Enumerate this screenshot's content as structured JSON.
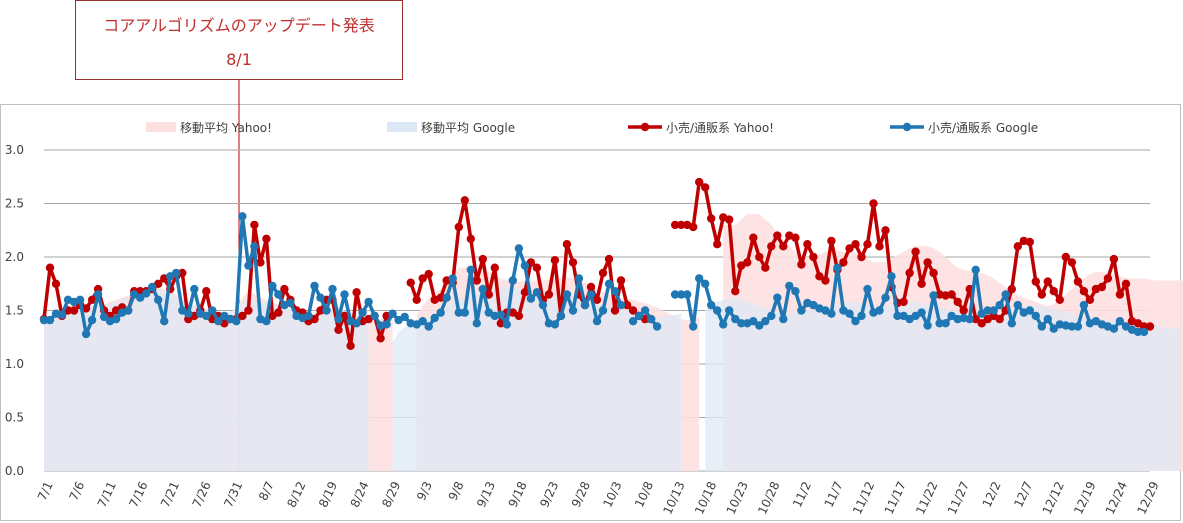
{
  "annotation": {
    "title": "コアアルゴリズムのアップデート発表",
    "date": "8/1"
  },
  "colors": {
    "yahoo_line": "#c00000",
    "google_line": "#1f77b4",
    "yahoo_area": "#fde0e0",
    "google_area": "#dde8f6",
    "overlap_area": "#e4dde8",
    "grid": "#a6a6a6",
    "annotation": "#c0302f"
  },
  "chart_data": {
    "type": "line",
    "ylim": [
      0,
      3.0
    ],
    "y_ticks": [
      "0.0",
      "0.5",
      "1.0",
      "1.5",
      "2.0",
      "2.5",
      "3.0"
    ],
    "x_tick_labels": [
      "7/1",
      "7/6",
      "7/11",
      "7/16",
      "7/21",
      "7/26",
      "7/31",
      "8/7",
      "8/12",
      "8/19",
      "8/24",
      "8/29",
      "9/3",
      "9/8",
      "9/13",
      "9/18",
      "9/23",
      "9/28",
      "10/3",
      "10/8",
      "10/13",
      "10/18",
      "10/23",
      "10/28",
      "11/2",
      "11/7",
      "11/12",
      "11/17",
      "11/22",
      "11/27",
      "12/2",
      "12/7",
      "12/12",
      "12/19",
      "12/24",
      "12/29"
    ],
    "legend_position": "top",
    "grid": true,
    "series": [
      {
        "name": "移動平均 Yahoo!",
        "kind": "area",
        "values": [
          1.41,
          1.45,
          1.5,
          1.53,
          1.55,
          1.55,
          1.55,
          1.55,
          1.55,
          1.55,
          1.56,
          1.58,
          1.6,
          1.62,
          1.64,
          1.66,
          1.69,
          1.7,
          1.71,
          1.72,
          1.7,
          1.68,
          1.65,
          1.61,
          1.57,
          1.55,
          1.52,
          1.5,
          1.48,
          1.47,
          1.46,
          1.46,
          1.52,
          1.62,
          1.68,
          1.65,
          1.62,
          1.6,
          1.58,
          1.55,
          1.52,
          1.5,
          1.47,
          1.46,
          1.45,
          1.45,
          1.48,
          1.52,
          1.53,
          1.52,
          1.5,
          1.48,
          1.46,
          1.42,
          1.4,
          1.4,
          1.42,
          1.44,
          1.44,
          null,
          null,
          null,
          1.46,
          1.54,
          1.62,
          1.66,
          1.7,
          1.77,
          1.84,
          1.9,
          1.9,
          1.91,
          1.9,
          1.88,
          1.86,
          1.84,
          1.8,
          1.78,
          1.77,
          1.77,
          1.78,
          1.78,
          1.78,
          1.78,
          1.79,
          1.8,
          1.8,
          1.81,
          1.8,
          1.78,
          1.76,
          1.73,
          1.7,
          1.67,
          1.65,
          1.63,
          1.62,
          1.61,
          1.6,
          1.58,
          1.57,
          1.55,
          1.53,
          1.5,
          1.47,
          1.44,
          1.42,
          1.41,
          1.42,
          1.44,
          null,
          null,
          null,
          2.3,
          2.3,
          2.3,
          2.35,
          2.4,
          2.4,
          2.4,
          2.35,
          2.3,
          2.22,
          2.15,
          2.1,
          2.05,
          2.02,
          2.0,
          2.0,
          2.02,
          2.05,
          2.06,
          2.06,
          2.05,
          2.05,
          2.04,
          2.02,
          1.98,
          1.95,
          1.95,
          1.96,
          1.98,
          2.02,
          2.05,
          2.08,
          2.1,
          2.1,
          2.1,
          2.08,
          2.05,
          2.0,
          1.95,
          1.9,
          1.88,
          1.87,
          1.86,
          1.85,
          1.83,
          1.8,
          1.76,
          1.72,
          1.68,
          1.64,
          1.62,
          1.6,
          1.58,
          1.56,
          1.54,
          1.56,
          1.6,
          1.65,
          1.7,
          1.75,
          1.8,
          1.84,
          1.86,
          1.86,
          1.85,
          1.84,
          1.82,
          1.8,
          1.8,
          1.8,
          1.8,
          1.79,
          1.78,
          1.78,
          1.78,
          1.78,
          1.78,
          1.78,
          1.78,
          1.78
        ]
      },
      {
        "name": "移動平均 Google",
        "kind": "area",
        "values": [
          1.41,
          1.43,
          1.46,
          1.5,
          1.52,
          1.53,
          1.54,
          1.55,
          1.55,
          1.55,
          1.55,
          1.56,
          1.58,
          1.6,
          1.62,
          1.64,
          1.67,
          1.69,
          1.7,
          1.7,
          1.68,
          1.66,
          1.63,
          1.6,
          1.57,
          1.55,
          1.53,
          1.52,
          1.5,
          1.49,
          1.48,
          1.49,
          1.52,
          1.58,
          1.62,
          1.6,
          1.58,
          1.57,
          1.56,
          1.55,
          1.53,
          1.51,
          1.5,
          1.48,
          1.47,
          1.47,
          1.49,
          1.52,
          1.52,
          1.51,
          1.5,
          1.48,
          1.46,
          1.44,
          1.43,
          null,
          null,
          null,
          1.2,
          1.3,
          1.34,
          1.38,
          1.4,
          1.42,
          1.44,
          1.46,
          1.5,
          1.55,
          1.6,
          1.62,
          1.62,
          1.63,
          1.64,
          1.65,
          1.67,
          1.7,
          1.72,
          1.72,
          1.71,
          1.7,
          1.69,
          1.66,
          1.63,
          1.62,
          1.62,
          1.62,
          1.63,
          1.64,
          1.63,
          1.62,
          1.6,
          1.58,
          1.56,
          1.55,
          1.54,
          1.53,
          1.52,
          1.5,
          1.48,
          1.46,
          1.44,
          1.43,
          1.43,
          1.44,
          1.45,
          1.46,
          1.47,
          null,
          null,
          null,
          1.5,
          1.55,
          1.58,
          1.6,
          1.62,
          1.62,
          1.6,
          1.58,
          1.56,
          1.54,
          1.52,
          1.5,
          1.48,
          1.47,
          1.47,
          1.48,
          1.49,
          1.5,
          1.51,
          1.52,
          1.53,
          1.54,
          1.56,
          1.58,
          1.58,
          1.57,
          1.56,
          1.55,
          1.54,
          1.54,
          1.54,
          1.55,
          1.56,
          1.57,
          1.58,
          1.58,
          1.57,
          1.56,
          1.55,
          1.53,
          1.52,
          1.5,
          1.49,
          1.48,
          1.47,
          1.46,
          1.45,
          1.45,
          1.46,
          1.47,
          1.48,
          1.5,
          1.52,
          1.54,
          1.55,
          1.55,
          1.54,
          1.53,
          1.52,
          1.5,
          1.48,
          1.47,
          1.46,
          1.45,
          1.44,
          1.43,
          1.42,
          1.41,
          1.4,
          1.4,
          1.4,
          1.39,
          1.38,
          1.38,
          1.37,
          1.36,
          1.35,
          1.34,
          1.33,
          1.33
        ]
      },
      {
        "name": "小売/通販系 Yahoo!",
        "kind": "line",
        "values": [
          1.42,
          1.9,
          1.75,
          1.45,
          1.5,
          1.5,
          1.55,
          1.52,
          1.6,
          1.7,
          1.5,
          1.45,
          1.5,
          1.53,
          1.5,
          1.68,
          1.68,
          1.68,
          1.7,
          1.75,
          1.8,
          1.7,
          1.82,
          1.85,
          1.42,
          1.45,
          1.5,
          1.68,
          1.42,
          1.45,
          1.38,
          1.42,
          1.42,
          1.45,
          1.5,
          2.3,
          1.95,
          2.17,
          1.45,
          1.48,
          1.7,
          1.6,
          1.5,
          1.48,
          1.4,
          1.42,
          1.5,
          1.6,
          1.6,
          1.32,
          1.45,
          1.17,
          1.67,
          1.4,
          1.42,
          1.45,
          1.24,
          1.45,
          null,
          null,
          null,
          1.76,
          1.6,
          1.8,
          1.84,
          1.6,
          1.62,
          1.78,
          1.76,
          2.28,
          2.53,
          2.17,
          1.78,
          1.98,
          1.65,
          1.9,
          1.38,
          1.48,
          1.48,
          1.45,
          1.67,
          1.95,
          1.9,
          1.6,
          1.65,
          1.97,
          1.45,
          2.12,
          1.95,
          1.65,
          1.55,
          1.72,
          1.6,
          1.85,
          1.98,
          1.5,
          1.78,
          1.55,
          1.5,
          1.45,
          1.42,
          1.42,
          null,
          null,
          null,
          2.3,
          2.3,
          2.3,
          2.28,
          2.7,
          2.65,
          2.36,
          2.12,
          2.37,
          2.35,
          1.68,
          1.92,
          1.95,
          2.18,
          2.0,
          1.9,
          2.1,
          2.2,
          2.1,
          2.2,
          2.18,
          1.93,
          2.12,
          2.0,
          1.82,
          1.78,
          2.15,
          1.88,
          1.95,
          2.08,
          2.12,
          2.0,
          2.12,
          2.5,
          2.1,
          2.25,
          1.72,
          1.57,
          1.58,
          1.85,
          2.05,
          1.75,
          1.95,
          1.85,
          1.65,
          1.64,
          1.65,
          1.58,
          1.5,
          1.7,
          1.42,
          1.38,
          1.42,
          1.45,
          1.42,
          1.5,
          1.7,
          2.1,
          2.15,
          2.14,
          1.77,
          1.65,
          1.77,
          1.68,
          1.6,
          2.0,
          1.95,
          1.77,
          1.68,
          1.6,
          1.7,
          1.72,
          1.8,
          1.98,
          1.65,
          1.75,
          1.4,
          1.38,
          1.35,
          1.35
        ]
      },
      {
        "name": "小売/通販系 Google",
        "kind": "line",
        "values": [
          1.41,
          1.41,
          1.47,
          1.46,
          1.6,
          1.58,
          1.6,
          1.28,
          1.41,
          1.65,
          1.44,
          1.4,
          1.42,
          1.48,
          1.5,
          1.65,
          1.62,
          1.66,
          1.72,
          1.6,
          1.4,
          1.82,
          1.85,
          1.5,
          1.47,
          1.7,
          1.47,
          1.45,
          1.5,
          1.4,
          1.45,
          1.42,
          1.4,
          2.38,
          1.92,
          2.1,
          1.42,
          1.4,
          1.73,
          1.65,
          1.55,
          1.57,
          1.45,
          1.43,
          1.45,
          1.73,
          1.62,
          1.5,
          1.7,
          1.42,
          1.65,
          1.4,
          1.38,
          1.48,
          1.58,
          1.45,
          1.36,
          1.37,
          1.47,
          1.41,
          1.44,
          1.38,
          1.37,
          1.4,
          1.35,
          1.43,
          1.48,
          1.62,
          1.8,
          1.48,
          1.48,
          1.88,
          1.38,
          1.7,
          1.48,
          1.45,
          1.46,
          1.37,
          1.78,
          2.08,
          1.92,
          1.61,
          1.67,
          1.55,
          1.38,
          1.37,
          1.45,
          1.65,
          1.5,
          1.8,
          1.55,
          1.65,
          1.4,
          1.5,
          1.75,
          1.68,
          1.55,
          null,
          1.4,
          1.45,
          1.5,
          1.42,
          1.35,
          null,
          null,
          1.65,
          1.65,
          1.65,
          1.35,
          1.8,
          1.75,
          1.55,
          1.5,
          1.37,
          1.5,
          1.42,
          1.38,
          1.38,
          1.4,
          1.36,
          1.4,
          1.45,
          1.62,
          1.42,
          1.73,
          1.68,
          1.5,
          1.57,
          1.55,
          1.52,
          1.5,
          1.47,
          1.9,
          1.5,
          1.47,
          1.4,
          1.45,
          1.7,
          1.48,
          1.5,
          1.62,
          1.82,
          1.45,
          1.45,
          1.42,
          1.45,
          1.48,
          1.36,
          1.64,
          1.38,
          1.38,
          1.45,
          1.42,
          1.43,
          1.42,
          1.88,
          1.47,
          1.5,
          1.5,
          1.55,
          1.65,
          1.38,
          1.55,
          1.48,
          1.5,
          1.45,
          1.35,
          1.42,
          1.33,
          1.37,
          1.36,
          1.35,
          1.35,
          1.55,
          1.38,
          1.4,
          1.37,
          1.35,
          1.33,
          1.4,
          1.35,
          1.32,
          1.3,
          1.3
        ]
      }
    ]
  }
}
